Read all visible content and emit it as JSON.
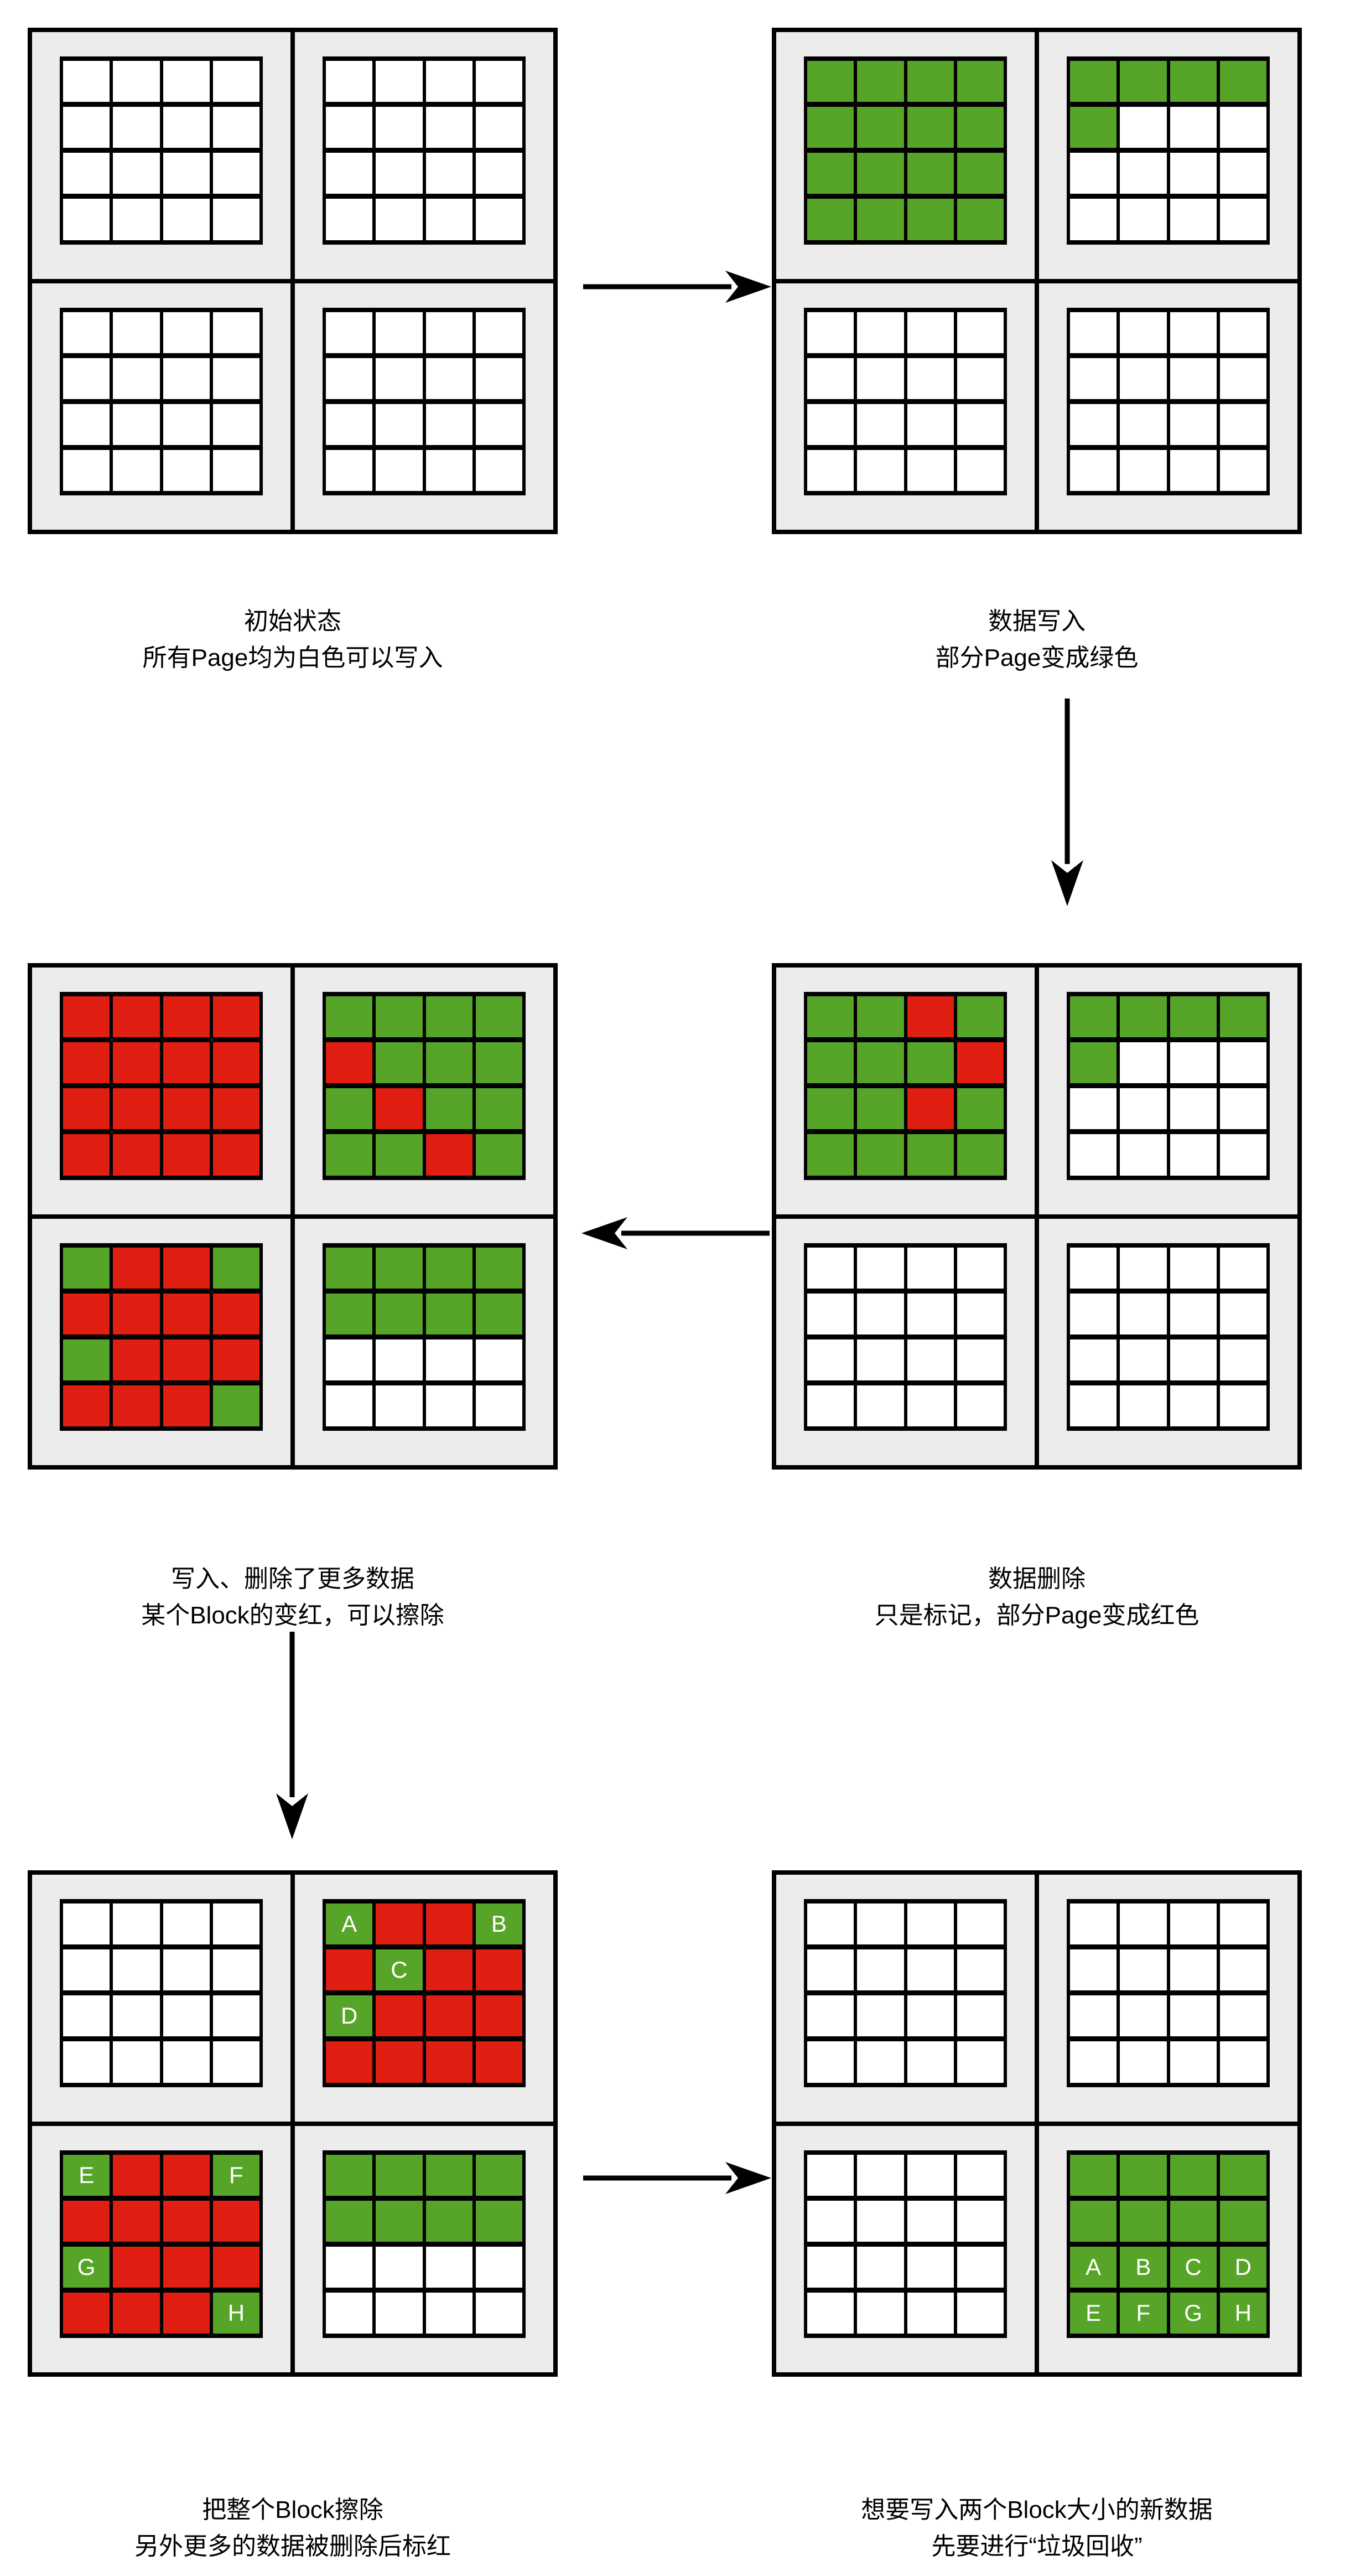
{
  "colors": {
    "green": "#57A528",
    "red": "#E11E12",
    "white": "#FFFFFF",
    "block_background": "#ECECEC",
    "border": "#000000",
    "page_background": "#FFFFFF",
    "caption_text": "#000000",
    "cell_label_text": "#FFFFFF"
  },
  "panels": [
    {
      "id": "initial",
      "caption_lines": [
        "初始状态",
        "所有Page均为白色可以写入"
      ],
      "blocks": [
        [
          [
            "W",
            "W",
            "W",
            "W"
          ],
          [
            "W",
            "W",
            "W",
            "W"
          ],
          [
            "W",
            "W",
            "W",
            "W"
          ],
          [
            "W",
            "W",
            "W",
            "W"
          ]
        ],
        [
          [
            "W",
            "W",
            "W",
            "W"
          ],
          [
            "W",
            "W",
            "W",
            "W"
          ],
          [
            "W",
            "W",
            "W",
            "W"
          ],
          [
            "W",
            "W",
            "W",
            "W"
          ]
        ],
        [
          [
            "W",
            "W",
            "W",
            "W"
          ],
          [
            "W",
            "W",
            "W",
            "W"
          ],
          [
            "W",
            "W",
            "W",
            "W"
          ],
          [
            "W",
            "W",
            "W",
            "W"
          ]
        ],
        [
          [
            "W",
            "W",
            "W",
            "W"
          ],
          [
            "W",
            "W",
            "W",
            "W"
          ],
          [
            "W",
            "W",
            "W",
            "W"
          ],
          [
            "W",
            "W",
            "W",
            "W"
          ]
        ]
      ]
    },
    {
      "id": "data-written",
      "caption_lines": [
        "数据写入",
        "部分Page变成绿色"
      ],
      "blocks": [
        [
          [
            "G",
            "G",
            "G",
            "G"
          ],
          [
            "G",
            "G",
            "G",
            "G"
          ],
          [
            "G",
            "G",
            "G",
            "G"
          ],
          [
            "G",
            "G",
            "G",
            "G"
          ]
        ],
        [
          [
            "G",
            "G",
            "G",
            "G"
          ],
          [
            "G",
            "W",
            "W",
            "W"
          ],
          [
            "W",
            "W",
            "W",
            "W"
          ],
          [
            "W",
            "W",
            "W",
            "W"
          ]
        ],
        [
          [
            "W",
            "W",
            "W",
            "W"
          ],
          [
            "W",
            "W",
            "W",
            "W"
          ],
          [
            "W",
            "W",
            "W",
            "W"
          ],
          [
            "W",
            "W",
            "W",
            "W"
          ]
        ],
        [
          [
            "W",
            "W",
            "W",
            "W"
          ],
          [
            "W",
            "W",
            "W",
            "W"
          ],
          [
            "W",
            "W",
            "W",
            "W"
          ],
          [
            "W",
            "W",
            "W",
            "W"
          ]
        ]
      ]
    },
    {
      "id": "data-deleted",
      "caption_lines": [
        "数据删除",
        "只是标记，部分Page变成红色"
      ],
      "blocks": [
        [
          [
            "G",
            "G",
            "R",
            "G"
          ],
          [
            "G",
            "G",
            "G",
            "R"
          ],
          [
            "G",
            "G",
            "R",
            "G"
          ],
          [
            "G",
            "G",
            "G",
            "G"
          ]
        ],
        [
          [
            "G",
            "G",
            "G",
            "G"
          ],
          [
            "G",
            "W",
            "W",
            "W"
          ],
          [
            "W",
            "W",
            "W",
            "W"
          ],
          [
            "W",
            "W",
            "W",
            "W"
          ]
        ],
        [
          [
            "W",
            "W",
            "W",
            "W"
          ],
          [
            "W",
            "W",
            "W",
            "W"
          ],
          [
            "W",
            "W",
            "W",
            "W"
          ],
          [
            "W",
            "W",
            "W",
            "W"
          ]
        ],
        [
          [
            "W",
            "W",
            "W",
            "W"
          ],
          [
            "W",
            "W",
            "W",
            "W"
          ],
          [
            "W",
            "W",
            "W",
            "W"
          ],
          [
            "W",
            "W",
            "W",
            "W"
          ]
        ]
      ]
    },
    {
      "id": "more-writes-deletes",
      "caption_lines": [
        "写入、删除了更多数据",
        "某个Block的变红，可以擦除"
      ],
      "blocks": [
        [
          [
            "R",
            "R",
            "R",
            "R"
          ],
          [
            "R",
            "R",
            "R",
            "R"
          ],
          [
            "R",
            "R",
            "R",
            "R"
          ],
          [
            "R",
            "R",
            "R",
            "R"
          ]
        ],
        [
          [
            "G",
            "G",
            "G",
            "G"
          ],
          [
            "R",
            "G",
            "G",
            "G"
          ],
          [
            "G",
            "R",
            "G",
            "G"
          ],
          [
            "G",
            "G",
            "R",
            "G"
          ]
        ],
        [
          [
            "G",
            "R",
            "R",
            "G"
          ],
          [
            "R",
            "R",
            "R",
            "R"
          ],
          [
            "G",
            "R",
            "R",
            "R"
          ],
          [
            "R",
            "R",
            "R",
            "G"
          ]
        ],
        [
          [
            "G",
            "G",
            "G",
            "G"
          ],
          [
            "G",
            "G",
            "G",
            "G"
          ],
          [
            "W",
            "W",
            "W",
            "W"
          ],
          [
            "W",
            "W",
            "W",
            "W"
          ]
        ]
      ]
    },
    {
      "id": "block-erased",
      "caption_lines": [
        "把整个Block擦除",
        "另外更多的数据被删除后标红"
      ],
      "blocks": [
        [
          [
            "W",
            "W",
            "W",
            "W"
          ],
          [
            "W",
            "W",
            "W",
            "W"
          ],
          [
            "W",
            "W",
            "W",
            "W"
          ],
          [
            "W",
            "W",
            "W",
            "W"
          ]
        ],
        [
          [
            "G:A",
            "R",
            "R",
            "G:B"
          ],
          [
            "R",
            "G:C",
            "R",
            "R"
          ],
          [
            "G:D",
            "R",
            "R",
            "R"
          ],
          [
            "R",
            "R",
            "R",
            "R"
          ]
        ],
        [
          [
            "G:E",
            "R",
            "R",
            "G:F"
          ],
          [
            "R",
            "R",
            "R",
            "R"
          ],
          [
            "G:G",
            "R",
            "R",
            "R"
          ],
          [
            "R",
            "R",
            "R",
            "G:H"
          ]
        ],
        [
          [
            "G",
            "G",
            "G",
            "G"
          ],
          [
            "G",
            "G",
            "G",
            "G"
          ],
          [
            "W",
            "W",
            "W",
            "W"
          ],
          [
            "W",
            "W",
            "W",
            "W"
          ]
        ]
      ]
    },
    {
      "id": "garbage-collection",
      "caption_lines": [
        "想要写入两个Block大小的新数据",
        "先要进行“垃圾回收”"
      ],
      "blocks": [
        [
          [
            "W",
            "W",
            "W",
            "W"
          ],
          [
            "W",
            "W",
            "W",
            "W"
          ],
          [
            "W",
            "W",
            "W",
            "W"
          ],
          [
            "W",
            "W",
            "W",
            "W"
          ]
        ],
        [
          [
            "W",
            "W",
            "W",
            "W"
          ],
          [
            "W",
            "W",
            "W",
            "W"
          ],
          [
            "W",
            "W",
            "W",
            "W"
          ],
          [
            "W",
            "W",
            "W",
            "W"
          ]
        ],
        [
          [
            "W",
            "W",
            "W",
            "W"
          ],
          [
            "W",
            "W",
            "W",
            "W"
          ],
          [
            "W",
            "W",
            "W",
            "W"
          ],
          [
            "W",
            "W",
            "W",
            "W"
          ]
        ],
        [
          [
            "G",
            "G",
            "G",
            "G"
          ],
          [
            "G",
            "G",
            "G",
            "G"
          ],
          [
            "G:A",
            "G:B",
            "G:C",
            "G:D"
          ],
          [
            "G:E",
            "G:F",
            "G:G",
            "G:H"
          ]
        ]
      ]
    }
  ],
  "arrows": [
    {
      "name": "arrow-initial-to-write",
      "direction": "right"
    },
    {
      "name": "arrow-write-to-delete",
      "direction": "down"
    },
    {
      "name": "arrow-delete-to-more",
      "direction": "left"
    },
    {
      "name": "arrow-more-to-erase",
      "direction": "down"
    },
    {
      "name": "arrow-erase-to-gc",
      "direction": "right"
    }
  ]
}
